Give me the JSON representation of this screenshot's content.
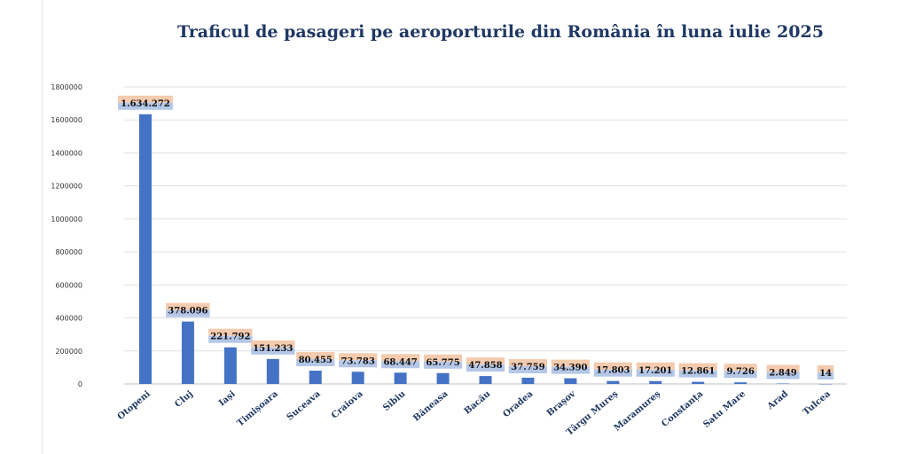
{
  "chart_data": {
    "type": "bar",
    "title": "Traficul de pasageri pe aeroporturile din România în luna iulie 2025",
    "categories": [
      "Otopeni",
      "Cluj",
      "Iași",
      "Timișoara",
      "Suceava",
      "Craiova",
      "Sibiu",
      "Băneasa",
      "Bacău",
      "Oradea",
      "Brașov",
      "Târgu Mureș",
      "Maramureș",
      "Constanța",
      "Satu Mare",
      "Arad",
      "Tulcea"
    ],
    "values": [
      1634272,
      378096,
      221792,
      151233,
      80455,
      73783,
      68447,
      65775,
      47858,
      37759,
      34390,
      17803,
      17201,
      12861,
      9726,
      2849,
      14
    ],
    "data_labels": [
      "1.634.272",
      "378.096",
      "221.792",
      "151.233",
      "80.455",
      "73.783",
      "68.447",
      "65.775",
      "47.858",
      "37.759",
      "34.390",
      "17.803",
      "17.201",
      "12.861",
      "9.726",
      "2.849",
      "14"
    ],
    "y_ticks": [
      "0",
      "200000",
      "400000",
      "600000",
      "800000",
      "1000000",
      "1200000",
      "1400000",
      "1600000",
      "1800000"
    ],
    "ylim": [
      0,
      1800000
    ],
    "xlabel": "",
    "ylabel": "",
    "grid": true,
    "legend": "none",
    "colors": {
      "bar": "#4472c4",
      "title": "#1f3864",
      "label_bg_orange": "#f4cbae",
      "label_bg_blue": "#b4c7e7",
      "grid": "#e0e0e0",
      "axis": "#bfbfbf"
    }
  }
}
